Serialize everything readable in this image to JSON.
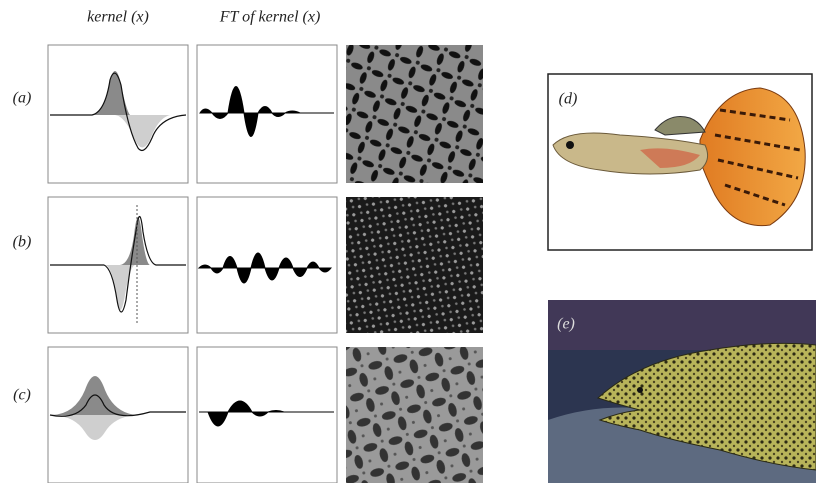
{
  "column_headers": [
    "kernel (x)",
    "FT of kernel (x)"
  ],
  "row_labels": [
    "(a)",
    "(b)",
    "(c)"
  ],
  "photo_labels": [
    "(d)",
    "(e)"
  ]
}
